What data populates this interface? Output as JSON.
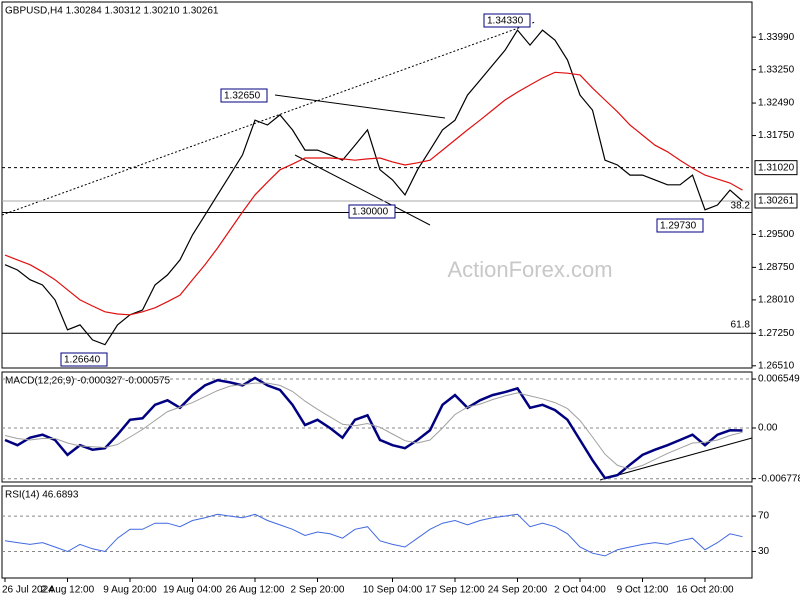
{
  "chart_data": [
    {
      "type": "line",
      "title": "GBPUSD,H4  1.30284 1.30312 1.30210 1.30261",
      "categories": [
        "26 Jul 2024",
        null,
        null,
        null,
        null,
        "2 Aug 12:00",
        null,
        null,
        null,
        null,
        "9 Aug 20:00",
        null,
        null,
        null,
        null,
        "19 Aug 04:00",
        null,
        null,
        null,
        null,
        "26 Aug 12:00",
        null,
        null,
        null,
        null,
        "2 Sep 20:00",
        null,
        null,
        null,
        null,
        null,
        "10 Sep 04:00",
        null,
        null,
        null,
        null,
        "17 Sep 12:00",
        null,
        null,
        null,
        null,
        "24 Sep 20:00",
        null,
        null,
        null,
        null,
        "2 Oct 04:00",
        null,
        null,
        null,
        null,
        "9 Oct 12:00",
        null,
        null,
        null,
        null,
        "16 Oct 20:00",
        null,
        null,
        null
      ],
      "series": [
        {
          "name": "GBPUSD",
          "color": "#000000",
          "values": [
            1.2881,
            1.2869,
            1.2847,
            1.2835,
            1.2801,
            1.2733,
            1.2744,
            1.271,
            1.2699,
            1.2744,
            1.2767,
            1.2778,
            1.2835,
            1.2858,
            1.2892,
            1.2949,
            1.2994,
            1.304,
            1.3085,
            1.3131,
            1.321,
            1.3199,
            1.3222,
            1.3188,
            1.3142,
            1.3142,
            1.3131,
            1.3119,
            1.3153,
            1.3188,
            1.3097,
            1.3074,
            1.304,
            1.3097,
            1.3142,
            1.3188,
            1.321,
            1.3267,
            1.3301,
            1.3335,
            1.3369,
            1.3415,
            1.3381,
            1.3415,
            1.3392,
            1.3347,
            1.3267,
            1.3233,
            1.3119,
            1.3108,
            1.3085,
            1.3085,
            1.3074,
            1.3063,
            1.3063,
            1.3085,
            1.3006,
            1.3017,
            1.3051,
            1.30261
          ]
        },
        {
          "name": "MA",
          "color": "#e01010",
          "values": [
            1.2903,
            1.2892,
            1.2881,
            1.2865,
            1.2847,
            1.2824,
            1.2801,
            1.2787,
            1.2774,
            1.2769,
            1.2767,
            1.2774,
            1.2783,
            1.2797,
            1.2812,
            1.2847,
            1.2881,
            1.2919,
            1.296,
            1.3001,
            1.304,
            1.3069,
            1.3097,
            1.311,
            1.3124,
            1.3124,
            1.3124,
            1.3122,
            1.3119,
            1.3122,
            1.3124,
            1.3115,
            1.3108,
            1.3113,
            1.3119,
            1.3142,
            1.3165,
            1.3188,
            1.321,
            1.3233,
            1.3256,
            1.3274,
            1.329,
            1.3306,
            1.3319,
            1.3317,
            1.3313,
            1.3283,
            1.3256,
            1.3229,
            1.3199,
            1.3176,
            1.3153,
            1.3138,
            1.3119,
            1.3101,
            1.3085,
            1.3076,
            1.3067,
            1.3051
          ]
        }
      ],
      "ylim": [
        1.2646,
        1.3479
      ],
      "yticks": [
        {
          "value": 1.2651,
          "label": "1.26510"
        },
        {
          "value": 1.2725,
          "label": "1.27250"
        },
        {
          "value": 1.2801,
          "label": "1.28010"
        },
        {
          "value": 1.2875,
          "label": "1.28750"
        },
        {
          "value": 1.295,
          "label": "1.29500"
        },
        {
          "value": 1.3175,
          "label": "1.31750"
        },
        {
          "value": 1.3249,
          "label": "1.32490"
        },
        {
          "value": 1.3325,
          "label": "1.33250"
        },
        {
          "value": 1.3399,
          "label": "1.33990"
        }
      ],
      "levels": [
        {
          "value": 1.3102,
          "label": "1.31020",
          "style": "dashed"
        },
        {
          "value": 1.3,
          "style": "solid"
        },
        {
          "value": 1.2725,
          "style": "solid"
        },
        {
          "value": 1.30261,
          "label": "1.30261",
          "style": "current"
        }
      ],
      "annotations": [
        "1.32650",
        "1.34330",
        "1.30000",
        "1.29730",
        "1.26640"
      ],
      "fib_labels": [
        "38.2",
        "61.8"
      ],
      "watermark": "ActionForex.com",
      "grid": false
    },
    {
      "type": "line",
      "title": "MACD(12,26,9) -0.000327 -0.000575",
      "series": [
        {
          "name": "MACD",
          "color": "#000080",
          "width": 2.5,
          "values": [
            -0.0016,
            -0.0023,
            -0.0013,
            -0.0009,
            -0.0016,
            -0.0036,
            -0.0023,
            -0.0029,
            -0.0027,
            -0.0009,
            0.0011,
            0.0013,
            0.0031,
            0.0037,
            0.0027,
            0.0044,
            0.0057,
            0.0064,
            0.0061,
            0.0057,
            0.0067,
            0.0057,
            0.0051,
            0.0031,
            0.0004,
            0.0011,
            0,
            -0.0013,
            0.0011,
            0.0017,
            -0.0016,
            -0.0023,
            -0.0027,
            -0.0016,
            -0.0003,
            0.0031,
            0.0044,
            0.0027,
            0.0037,
            0.0044,
            0.0048,
            0.0053,
            0.0027,
            0.0031,
            0.0024,
            0.0011,
            -0.0016,
            -0.0043,
            -0.0067,
            -0.0063,
            -0.0049,
            -0.0036,
            -0.0029,
            -0.0023,
            -0.0016,
            -0.0009,
            -0.0023,
            -0.0009,
            -0.0003,
            -0.000327
          ]
        },
        {
          "name": "Signal",
          "color": "#a0a0a0",
          "width": 1,
          "values": [
            -0.001,
            -0.0014,
            -0.0016,
            -0.0014,
            -0.0014,
            -0.002,
            -0.0024,
            -0.0025,
            -0.0026,
            -0.0022,
            -0.0012,
            -0.0002,
            0.001,
            0.0022,
            0.0028,
            0.0034,
            0.0042,
            0.005,
            0.0056,
            0.0058,
            0.006,
            0.006,
            0.0057,
            0.0049,
            0.0036,
            0.0025,
            0.0015,
            0.0005,
            0.0003,
            0.0006,
            0.0001,
            -0.0008,
            -0.0017,
            -0.002,
            -0.0016,
            0.0,
            0.0018,
            0.0028,
            0.0032,
            0.0038,
            0.0043,
            0.0047,
            0.0043,
            0.0039,
            0.0034,
            0.0026,
            0.001,
            -0.0012,
            -0.0035,
            -0.005,
            -0.0055,
            -0.005,
            -0.0042,
            -0.0034,
            -0.0027,
            -0.002,
            -0.0019,
            -0.0016,
            -0.001,
            -0.000575
          ]
        }
      ],
      "ylim": [
        -0.00722,
        0.00749
      ],
      "yticks": [
        0.006549,
        {
          "value": 0,
          "label": "0.00"
        },
        -0.006778
      ],
      "grid": true
    },
    {
      "type": "line",
      "title": "RSI(14) 46.6893",
      "series": [
        {
          "name": "RSI",
          "color": "#4169e1",
          "width": 1,
          "values": [
            42,
            40,
            38,
            40,
            35,
            30,
            38,
            33,
            30,
            45,
            55,
            55,
            62,
            62,
            58,
            65,
            68,
            72,
            70,
            68,
            72,
            65,
            60,
            55,
            48,
            52,
            50,
            45,
            55,
            58,
            42,
            38,
            35,
            45,
            55,
            62,
            65,
            60,
            65,
            68,
            70,
            72,
            58,
            62,
            58,
            50,
            35,
            28,
            25,
            32,
            35,
            38,
            40,
            38,
            42,
            45,
            32,
            40,
            50,
            46.6893
          ]
        }
      ],
      "ylim": [
        0,
        104
      ],
      "yticks": [
        70,
        30
      ],
      "grid": true
    }
  ]
}
